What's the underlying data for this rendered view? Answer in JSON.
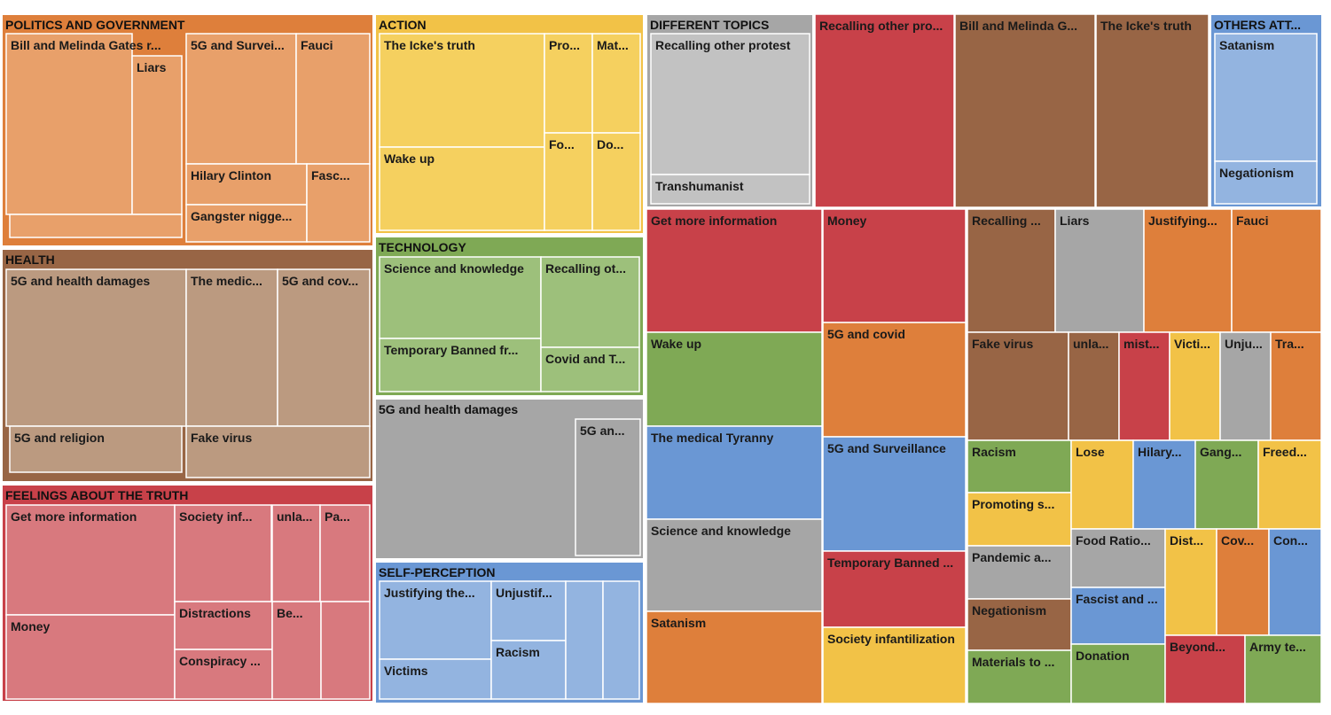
{
  "chart_data": {
    "type": "treemap",
    "note_values_are_estimated_from_area": true,
    "groups": [
      {
        "name": "POLITICS AND GOVERNMENT",
        "color": "#de7f3b",
        "leaf_color": "#e8a06a",
        "children": [
          {
            "label": "Bill and Melinda Gates r...",
            "value": 46
          },
          {
            "label": "Liars",
            "value": 10
          },
          {
            "label": "",
            "value": 3
          },
          {
            "label": "5G and Survei...",
            "value": 14
          },
          {
            "label": "Fauci",
            "value": 10
          },
          {
            "label": "Hilary Clinton",
            "value": 6
          },
          {
            "label": "Gangster nigge...",
            "value": 6
          },
          {
            "label": "Fasc...",
            "value": 8
          }
        ]
      },
      {
        "name": "HEALTH",
        "color": "#986545",
        "leaf_color": "#bb9a80",
        "children": [
          {
            "label": "5G and health damages",
            "value": 42
          },
          {
            "label": "5G and religion",
            "value": 9
          },
          {
            "label": "The medic...",
            "value": 17
          },
          {
            "label": "5G and cov...",
            "value": 17
          },
          {
            "label": "Fake virus",
            "value": 12
          }
        ]
      },
      {
        "name": "FEELINGS ABOUT THE TRUTH",
        "color": "#c84149",
        "leaf_color": "#d8797e",
        "children": [
          {
            "label": "Get more information",
            "value": 24
          },
          {
            "label": "Money",
            "value": 20
          },
          {
            "label": "Society inf...",
            "value": 11
          },
          {
            "label": "Distractions",
            "value": 5
          },
          {
            "label": "Conspiracy ...",
            "value": 6
          },
          {
            "label": "unla...",
            "value": 6
          },
          {
            "label": "Pa...",
            "value": 6
          },
          {
            "label": "Be...",
            "value": 6
          },
          {
            "label": "",
            "value": 6
          }
        ]
      },
      {
        "name": "ACTION",
        "color": "#f2c247",
        "leaf_color": "#f5d05f",
        "children": [
          {
            "label": "The Icke's truth",
            "value": 18
          },
          {
            "label": "Wake up",
            "value": 17
          },
          {
            "label": "Pro...",
            "value": 6
          },
          {
            "label": "Mat...",
            "value": 6
          },
          {
            "label": "Fo...",
            "value": 6
          },
          {
            "label": "Do...",
            "value": 6
          }
        ]
      },
      {
        "name": "TECHNOLOGY",
        "color": "#7fa955",
        "leaf_color": "#9dc07b",
        "children": [
          {
            "label": "Science and knowledge",
            "value": 15
          },
          {
            "label": "Temporary Banned fr...",
            "value": 10
          },
          {
            "label": "Recalling ot...",
            "value": 11
          },
          {
            "label": "Covid and T...",
            "value": 6
          }
        ]
      },
      {
        "name": "5G and health damages",
        "color": "#a6a6a6",
        "leaf_color": "#a6a6a6",
        "children": [
          {
            "label": "5G an...",
            "value": 9
          }
        ]
      },
      {
        "name": "SELF-PERCEPTION",
        "color": "#6a97d4",
        "leaf_color": "#93b4e0",
        "children": [
          {
            "label": "Justifying the...",
            "value": 13
          },
          {
            "label": "Victims",
            "value": 7
          },
          {
            "label": "Unjustif...",
            "value": 8
          },
          {
            "label": "Racism",
            "value": 10
          },
          {
            "label": "",
            "value": 7
          },
          {
            "label": "",
            "value": 7
          }
        ]
      },
      {
        "name": "DIFFERENT TOPICS",
        "color": "#a6a6a6",
        "leaf_color": "#c2c2c2",
        "children": [
          {
            "label": "Recalling other protest",
            "value": 20
          },
          {
            "label": "Transhumanist",
            "value": 4
          }
        ]
      },
      {
        "name": "OTHERS ATT...",
        "color": "#6a97d4",
        "leaf_color": "#93b4e0",
        "children": [
          {
            "label": "Satanism",
            "value": 9
          },
          {
            "label": "Negationism",
            "value": 3
          }
        ]
      }
    ],
    "single_topics": [
      {
        "label": "Recalling other pro...",
        "color": "#c84149"
      },
      {
        "label": "Bill and Melinda G...",
        "color": "#986545"
      },
      {
        "label": "The Icke's truth",
        "color": "#986545"
      },
      {
        "label": "Get more information",
        "color": "#c84149"
      },
      {
        "label": "Wake up",
        "color": "#7fa955"
      },
      {
        "label": "The medical Tyranny",
        "color": "#6a97d4"
      },
      {
        "label": "Science and knowledge",
        "color": "#a6a6a6"
      },
      {
        "label": "Satanism",
        "color": "#de7f3b"
      },
      {
        "label": "Money",
        "color": "#c84149"
      },
      {
        "label": "5G and covid",
        "color": "#de7f3b"
      },
      {
        "label": "5G and Surveillance",
        "color": "#6a97d4"
      },
      {
        "label": "Temporary Banned ...",
        "color": "#c84149"
      },
      {
        "label": "Society infantilization",
        "color": "#f2c247"
      },
      {
        "label": "Recalling ...",
        "color": "#986545"
      },
      {
        "label": "Liars",
        "color": "#a6a6a6"
      },
      {
        "label": "Justifying...",
        "color": "#de7f3b"
      },
      {
        "label": "Fauci",
        "color": "#de7f3b"
      },
      {
        "label": "Fake virus",
        "color": "#986545"
      },
      {
        "label": "unla...",
        "color": "#986545"
      },
      {
        "label": "mist...",
        "color": "#c84149"
      },
      {
        "label": "Victi...",
        "color": "#f2c247"
      },
      {
        "label": "Unju...",
        "color": "#a6a6a6"
      },
      {
        "label": "Tra...",
        "color": "#de7f3b"
      },
      {
        "label": "Racism",
        "color": "#7fa955"
      },
      {
        "label": "Promoting s...",
        "color": "#f2c247"
      },
      {
        "label": "Pandemic a...",
        "color": "#a6a6a6"
      },
      {
        "label": "Negationism",
        "color": "#986545"
      },
      {
        "label": "Materials to ...",
        "color": "#7fa955"
      },
      {
        "label": "Lose",
        "color": "#f2c247"
      },
      {
        "label": "Hilary...",
        "color": "#6a97d4"
      },
      {
        "label": "Gang...",
        "color": "#7fa955"
      },
      {
        "label": "Freed...",
        "color": "#f2c247"
      },
      {
        "label": "Food Ratio...",
        "color": "#a6a6a6"
      },
      {
        "label": "Fascist and ...",
        "color": "#6a97d4"
      },
      {
        "label": "Donation",
        "color": "#7fa955"
      },
      {
        "label": "Dist...",
        "color": "#f2c247"
      },
      {
        "label": "Cov...",
        "color": "#de7f3b"
      },
      {
        "label": "Con...",
        "color": "#6a97d4"
      },
      {
        "label": "Beyond...",
        "color": "#c84149"
      },
      {
        "label": "Army te...",
        "color": "#7fa955"
      }
    ]
  }
}
